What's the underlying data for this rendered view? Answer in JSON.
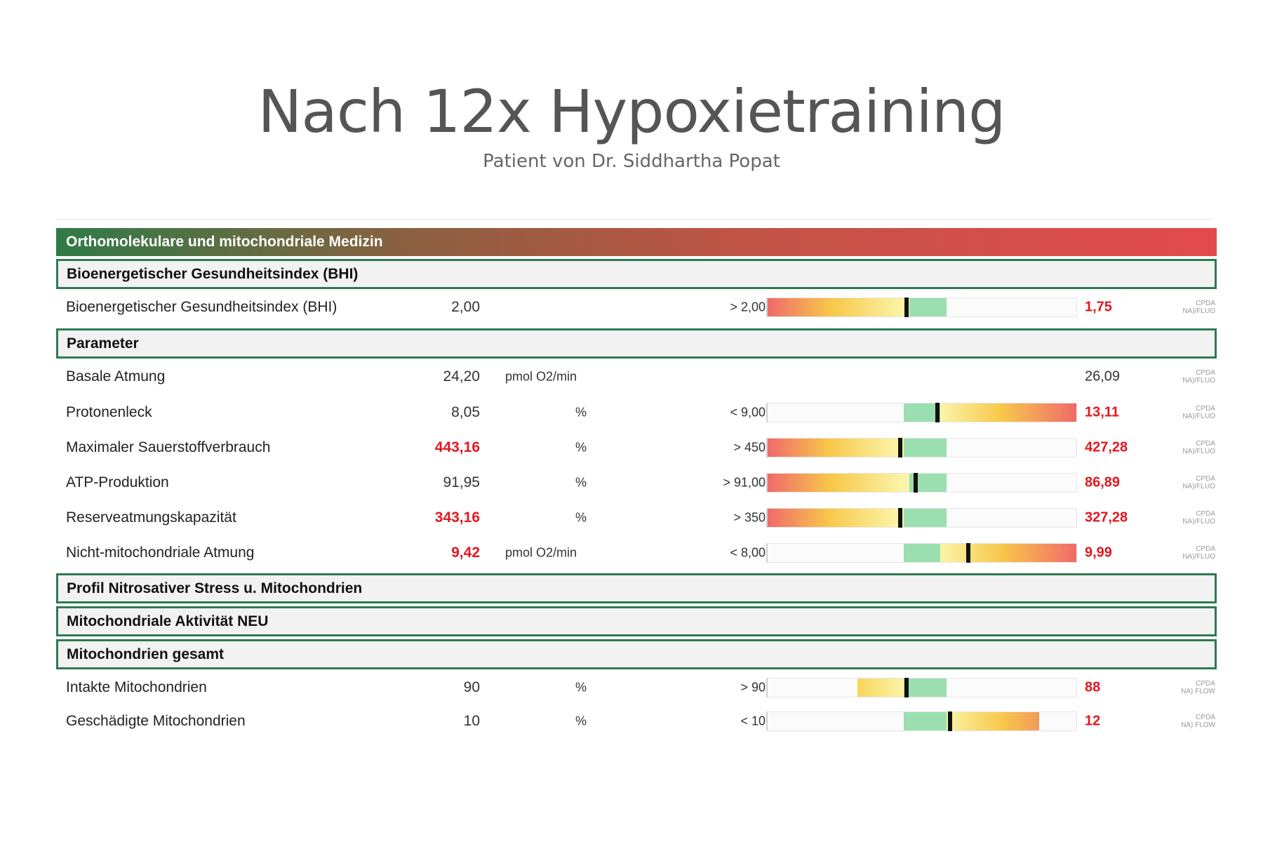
{
  "header": {
    "title": "Nach 12x Hypoxietraining",
    "subtitle": "Patient von Dr. Siddhartha Popat"
  },
  "report": {
    "banner": "Orthomolekulare und mitochondriale Medizin",
    "sections": {
      "bhi": "Bioenergetischer Gesundheitsindex (BHI)",
      "parameter": "Parameter",
      "profil": "Profil Nitrosativer Stress u. Mitochondrien",
      "aktivitaet": "Mitochondriale Aktivität NEU",
      "gesamt": "Mitochondrien gesamt"
    },
    "method": {
      "line1": "CPDA",
      "line2_fluo": "NA)/FLUO",
      "line2_flow": "NA) FLOW"
    },
    "rows": {
      "bhi": {
        "label": "Bioenergetischer Gesundheitsindex (BHI)",
        "value": "2,00",
        "unit": "",
        "reference": "> 2,00",
        "result": "1,75",
        "marker": 0.45
      },
      "basale": {
        "label": "Basale Atmung",
        "value": "24,20",
        "unit": "pmol O2/min",
        "reference": "",
        "result": "26,09"
      },
      "protonen": {
        "label": "Protonenleck",
        "value": "8,05",
        "unit": "%",
        "reference": "< 9,00",
        "result": "13,11",
        "marker": 0.55
      },
      "sauerstoff": {
        "label": "Maximaler Sauerstoffverbrauch",
        "value": "443,16",
        "unit": "%",
        "reference": "> 450",
        "result": "427,28",
        "marker": 0.43
      },
      "atp": {
        "label": "ATP-Produktion",
        "value": "91,95",
        "unit": "%",
        "reference": "> 91,00",
        "result": "86,89",
        "marker": 0.48
      },
      "reserve": {
        "label": "Reserveatmungskapazität",
        "value": "343,16",
        "unit": "%",
        "reference": "> 350",
        "result": "327,28",
        "marker": 0.43
      },
      "nicht": {
        "label": "Nicht-mitochondriale Atmung",
        "value": "9,42",
        "unit": "pmol O2/min",
        "reference": "< 8,00",
        "result": "9,99",
        "marker": 0.65
      },
      "intakt": {
        "label": "Intakte Mitochondrien",
        "value": "90",
        "unit": "%",
        "reference": "> 90",
        "result": "88",
        "marker": 0.45
      },
      "geschaedigt": {
        "label": "Geschädigte Mitochondrien",
        "value": "10",
        "unit": "%",
        "reference": "< 10",
        "result": "12",
        "marker": 0.59
      }
    }
  },
  "colors": {
    "green": "#2e7a52",
    "red": "#e3171f",
    "gauge_low": "#f06a6a",
    "gauge_mid": "#f8c84a",
    "gauge_ok": "#9bdfb0"
  }
}
